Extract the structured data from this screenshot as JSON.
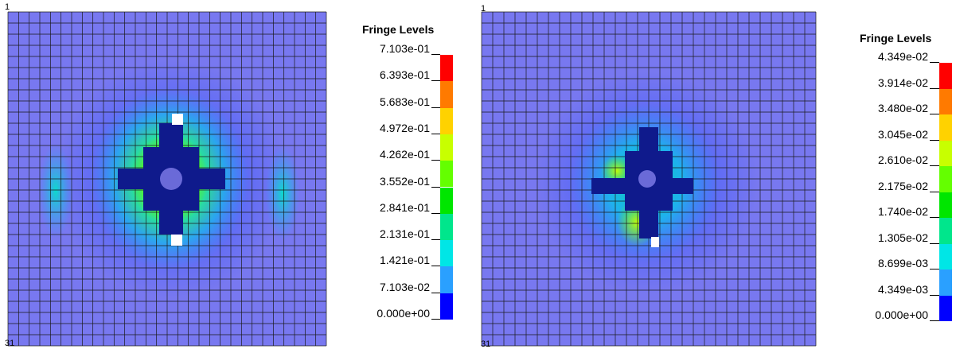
{
  "plots": [
    {
      "id": "left",
      "corner_top_label": "1",
      "corner_bottom_label": "31",
      "colors": {
        "background": "#7878f0",
        "mesh_line": "#1a1a1a",
        "cross_fill": "#0f1a8c"
      },
      "legend": {
        "title": "Fringe Levels",
        "levels": [
          "7.103e-01",
          "6.393e-01",
          "5.683e-01",
          "4.972e-01",
          "4.262e-01",
          "3.552e-01",
          "2.841e-01",
          "2.131e-01",
          "1.421e-01",
          "7.103e-02",
          "0.000e+00"
        ],
        "colors": [
          "#ff0000",
          "#ff7a00",
          "#ffd200",
          "#c8ff00",
          "#64ff00",
          "#00e600",
          "#00e68c",
          "#00e6e6",
          "#2aa0ff",
          "#0000ff"
        ]
      }
    },
    {
      "id": "right",
      "corner_top_label": "1",
      "corner_bottom_label": "31",
      "colors": {
        "background": "#7878f0",
        "mesh_line": "#1a1a1a",
        "cross_fill": "#0f1a8c"
      },
      "legend": {
        "title": "Fringe Levels",
        "levels": [
          "4.349e-02",
          "3.914e-02",
          "3.480e-02",
          "3.045e-02",
          "2.610e-02",
          "2.175e-02",
          "1.740e-02",
          "1.305e-02",
          "8.699e-03",
          "4.349e-03",
          "0.000e+00"
        ],
        "colors": [
          "#ff0000",
          "#ff7a00",
          "#ffd200",
          "#c8ff00",
          "#64ff00",
          "#00e600",
          "#00e68c",
          "#00e6e6",
          "#2aa0ff",
          "#0000ff"
        ]
      }
    }
  ]
}
